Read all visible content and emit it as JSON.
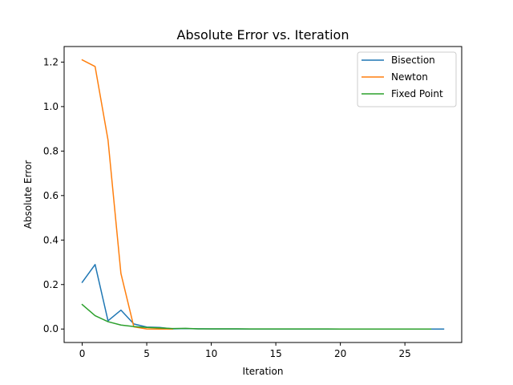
{
  "chart_data": {
    "type": "line",
    "title": "Absolute Error vs. Iteration",
    "xlabel": "Iteration",
    "ylabel": "Absolute Error",
    "xlim": [
      -1.4,
      29.4
    ],
    "ylim": [
      -0.0605,
      1.27
    ],
    "xticks": [
      0,
      5,
      10,
      15,
      20,
      25
    ],
    "yticks": [
      0.0,
      0.2,
      0.4,
      0.6,
      0.8,
      1.0,
      1.2
    ],
    "ytick_labels": [
      "0.0",
      "0.2",
      "0.4",
      "0.6",
      "0.8",
      "1.0",
      "1.2"
    ],
    "grid": false,
    "legend_position": "top-right",
    "series": [
      {
        "name": "Bisection",
        "color": "#1f77b4",
        "x": [
          0,
          1,
          2,
          3,
          4,
          5,
          6,
          7,
          8,
          9,
          10,
          11,
          12,
          13,
          14,
          15,
          16,
          17,
          18,
          19,
          20,
          21,
          22,
          23,
          24,
          25,
          26,
          27,
          28
        ],
        "y": [
          0.21,
          0.29,
          0.037,
          0.085,
          0.023,
          0.009,
          0.007,
          0.001,
          0.002,
          0.001,
          0.0005,
          0.0003,
          0.0002,
          0.0001,
          0.0001,
          0.0001,
          0.0001,
          0.0001,
          0.0001,
          0.0001,
          0.0001,
          0.0001,
          0.0001,
          0.0001,
          0.0001,
          0.0001,
          0.0001,
          0.0001,
          0.0001
        ]
      },
      {
        "name": "Newton",
        "color": "#ff7f0e",
        "x": [
          0,
          1,
          2,
          3,
          4,
          5,
          6,
          7
        ],
        "y": [
          1.21,
          1.18,
          0.85,
          0.25,
          0.01,
          0.0005,
          0.0001,
          0.0
        ]
      },
      {
        "name": "Fixed Point",
        "color": "#2ca02c",
        "x": [
          0,
          1,
          2,
          3,
          4,
          5,
          6,
          7,
          8,
          9,
          10,
          11,
          12,
          13,
          14,
          15,
          16,
          17,
          18,
          19,
          20,
          21,
          22,
          23,
          24,
          25,
          26,
          27
        ],
        "y": [
          0.11,
          0.06,
          0.033,
          0.018,
          0.011,
          0.007,
          0.005,
          0.002,
          0.003,
          0.001,
          0.001,
          0.0008,
          0.0006,
          0.0005,
          0.0004,
          0.0003,
          0.0003,
          0.0002,
          0.0002,
          0.0002,
          0.0001,
          0.0001,
          0.0001,
          0.0001,
          0.0001,
          0.0001,
          0.0001,
          0.0001
        ]
      }
    ]
  }
}
